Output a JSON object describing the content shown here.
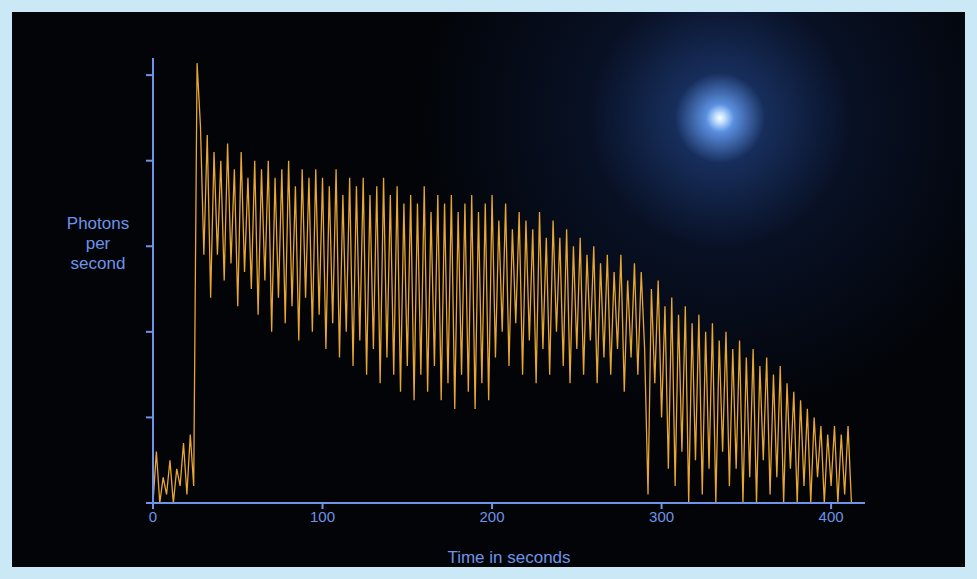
{
  "chart_data": {
    "type": "line",
    "x_label": "Time in seconds",
    "y_label": "Photons per second",
    "x": [
      0,
      2,
      4,
      6,
      8,
      10,
      12,
      14,
      16,
      18,
      20,
      22,
      24,
      26,
      28,
      30,
      32,
      34,
      36,
      38,
      40,
      42,
      44,
      46,
      48,
      50,
      52,
      54,
      56,
      58,
      60,
      62,
      64,
      66,
      68,
      70,
      72,
      74,
      76,
      78,
      80,
      82,
      84,
      86,
      88,
      90,
      92,
      94,
      96,
      98,
      100,
      102,
      104,
      106,
      108,
      110,
      112,
      114,
      116,
      118,
      120,
      122,
      124,
      126,
      128,
      130,
      132,
      134,
      136,
      138,
      140,
      142,
      144,
      146,
      148,
      150,
      152,
      154,
      156,
      158,
      160,
      162,
      164,
      166,
      168,
      170,
      172,
      174,
      176,
      178,
      180,
      182,
      184,
      186,
      188,
      190,
      192,
      194,
      196,
      198,
      200,
      202,
      204,
      206,
      208,
      210,
      212,
      214,
      216,
      218,
      220,
      222,
      224,
      226,
      228,
      230,
      232,
      234,
      236,
      238,
      240,
      242,
      244,
      246,
      248,
      250,
      252,
      254,
      256,
      258,
      260,
      262,
      264,
      266,
      268,
      270,
      272,
      274,
      276,
      278,
      280,
      282,
      284,
      286,
      288,
      290,
      292,
      294,
      296,
      298,
      300,
      302,
      304,
      306,
      308,
      310,
      312,
      314,
      316,
      318,
      320,
      322,
      324,
      326,
      328,
      330,
      332,
      334,
      336,
      338,
      340,
      342,
      344,
      346,
      348,
      350,
      352,
      354,
      356,
      358,
      360,
      362,
      364,
      366,
      368,
      370,
      372,
      374,
      376,
      378,
      380,
      382,
      384,
      386,
      388,
      390,
      392,
      394,
      396,
      398,
      400,
      402,
      404,
      406,
      408,
      410,
      412
    ],
    "values": [
      0,
      0.6,
      0,
      0.3,
      0.1,
      0.5,
      0,
      0.4,
      0.2,
      0.7,
      0.1,
      0.8,
      0.2,
      5.14,
      4.4,
      2.9,
      4.3,
      2.4,
      4.1,
      2.9,
      4.0,
      2.6,
      4.2,
      2.8,
      3.9,
      2.3,
      4.1,
      2.7,
      3.8,
      2.5,
      4.0,
      2.2,
      3.9,
      2.6,
      4.0,
      2.0,
      3.8,
      2.4,
      3.9,
      2.1,
      4.0,
      2.3,
      3.7,
      1.9,
      3.9,
      2.4,
      3.8,
      2.0,
      3.9,
      2.2,
      3.8,
      1.8,
      3.7,
      2.1,
      3.9,
      1.7,
      3.6,
      2.0,
      3.8,
      1.6,
      3.7,
      1.9,
      3.8,
      1.5,
      3.6,
      1.8,
      3.7,
      1.4,
      3.8,
      1.7,
      3.6,
      1.5,
      3.7,
      1.3,
      3.5,
      1.6,
      3.6,
      1.2,
      3.5,
      1.5,
      3.7,
      1.3,
      3.4,
      1.6,
      3.6,
      1.2,
      3.5,
      1.4,
      3.6,
      1.1,
      3.4,
      1.5,
      3.5,
      1.3,
      3.6,
      1.1,
      3.4,
      1.4,
      3.5,
      1.2,
      3.6,
      1.7,
      3.3,
      2.0,
      3.5,
      1.6,
      3.2,
      2.1,
      3.4,
      1.5,
      3.3,
      1.9,
      3.2,
      1.4,
      3.4,
      1.8,
      3.1,
      1.5,
      3.3,
      2.0,
      3.1,
      1.6,
      3.2,
      1.4,
      3.0,
      1.8,
      3.1,
      1.5,
      2.9,
      1.9,
      3.0,
      1.4,
      2.8,
      1.7,
      2.9,
      1.5,
      2.7,
      1.8,
      2.9,
      1.3,
      2.6,
      1.7,
      2.8,
      1.5,
      2.7,
      1.8,
      0.1,
      2.5,
      1.4,
      2.6,
      1.0,
      2.3,
      0.4,
      2.4,
      0.2,
      2.2,
      0.6,
      2.3,
      0,
      2.1,
      0.5,
      2.2,
      0.1,
      2.0,
      0.4,
      2.1,
      0,
      1.9,
      0.6,
      2.0,
      0.2,
      1.8,
      0.4,
      1.9,
      0,
      1.7,
      0.3,
      1.8,
      0,
      1.6,
      0.5,
      1.7,
      0.1,
      1.5,
      0.3,
      1.6,
      0,
      1.4,
      0.4,
      1.3,
      0,
      1.2,
      0.2,
      1.1,
      0,
      1.0,
      0.3,
      0.9,
      0,
      0.8,
      0.2,
      0.9,
      0,
      0.8,
      0.1,
      0.9,
      0
    ],
    "color": "#e8a632",
    "xlim": [
      0,
      420
    ],
    "xticks": [
      0,
      100,
      200,
      300,
      400
    ],
    "ylim": [
      0,
      5.2
    ],
    "yticks": [
      0,
      1,
      2,
      3,
      4,
      5
    ],
    "tick_labels": "x",
    "grid": false
  }
}
